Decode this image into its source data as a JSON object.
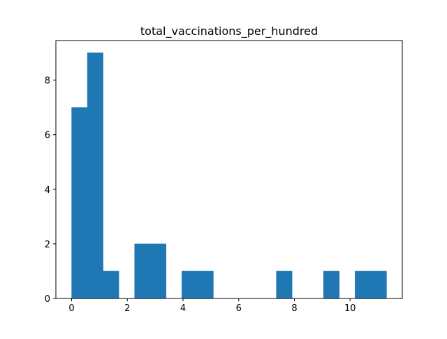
{
  "chart_data": {
    "type": "bar",
    "title": "total_vaccinations_per_hundred",
    "xlabel": "",
    "ylabel": "",
    "bar_color": "#1f77b4",
    "grid": false,
    "xlim": [
      -0.566,
      11.876
    ],
    "ylim": [
      0,
      9.45
    ],
    "xticks": [
      "0",
      "2",
      "4",
      "6",
      "8",
      "10"
    ],
    "yticks": [
      "0",
      "2",
      "4",
      "6",
      "8"
    ],
    "bins": [
      {
        "x0": 0.0,
        "x1": 0.566,
        "value": 7
      },
      {
        "x0": 0.566,
        "x1": 1.131,
        "value": 9
      },
      {
        "x0": 1.131,
        "x1": 1.697,
        "value": 1
      },
      {
        "x0": 1.697,
        "x1": 2.262,
        "value": 0
      },
      {
        "x0": 2.262,
        "x1": 2.828,
        "value": 2
      },
      {
        "x0": 2.828,
        "x1": 3.393,
        "value": 2
      },
      {
        "x0": 3.393,
        "x1": 3.959,
        "value": 0
      },
      {
        "x0": 3.959,
        "x1": 4.524,
        "value": 1
      },
      {
        "x0": 4.524,
        "x1": 5.09,
        "value": 1
      },
      {
        "x0": 5.09,
        "x1": 5.655,
        "value": 0
      },
      {
        "x0": 5.655,
        "x1": 6.221,
        "value": 0
      },
      {
        "x0": 6.221,
        "x1": 6.786,
        "value": 0
      },
      {
        "x0": 6.786,
        "x1": 7.352,
        "value": 0
      },
      {
        "x0": 7.352,
        "x1": 7.917,
        "value": 1
      },
      {
        "x0": 7.917,
        "x1": 8.483,
        "value": 0
      },
      {
        "x0": 8.483,
        "x1": 9.048,
        "value": 0
      },
      {
        "x0": 9.048,
        "x1": 9.614,
        "value": 1
      },
      {
        "x0": 9.614,
        "x1": 10.179,
        "value": 0
      },
      {
        "x0": 10.179,
        "x1": 10.745,
        "value": 1
      },
      {
        "x0": 10.745,
        "x1": 11.31,
        "value": 1
      }
    ]
  }
}
